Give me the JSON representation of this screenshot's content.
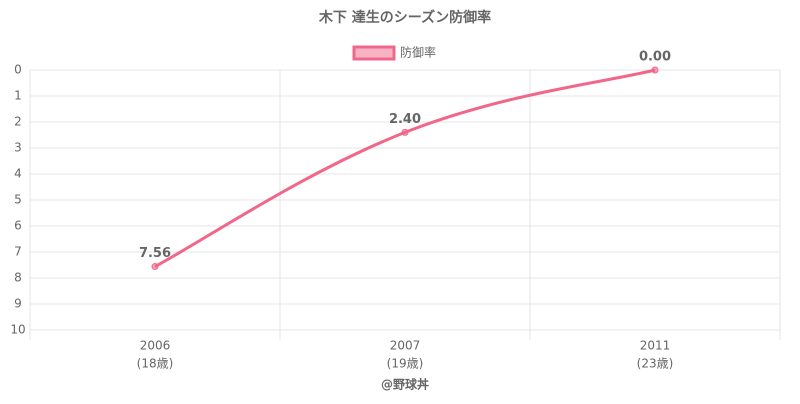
{
  "chart_data": {
    "type": "line",
    "title": "木下 達生のシーズン防御率",
    "categories": [
      "2006",
      "2007",
      "2011"
    ],
    "x_sublabels": [
      "(18歳)",
      "(19歳)",
      "(23歳)"
    ],
    "series": [
      {
        "name": "防御率",
        "color": "#f0678a",
        "values": [
          7.56,
          2.4,
          0
        ],
        "value_labels": [
          "7.56",
          "2.40",
          "0.00"
        ]
      }
    ],
    "ylim": [
      0,
      10
    ],
    "yticks": [
      0,
      1,
      2,
      3,
      4,
      5,
      6,
      7,
      8,
      9,
      10
    ],
    "y_reversed": true,
    "grid": true,
    "legend": "top",
    "credit": "@野球丼"
  }
}
